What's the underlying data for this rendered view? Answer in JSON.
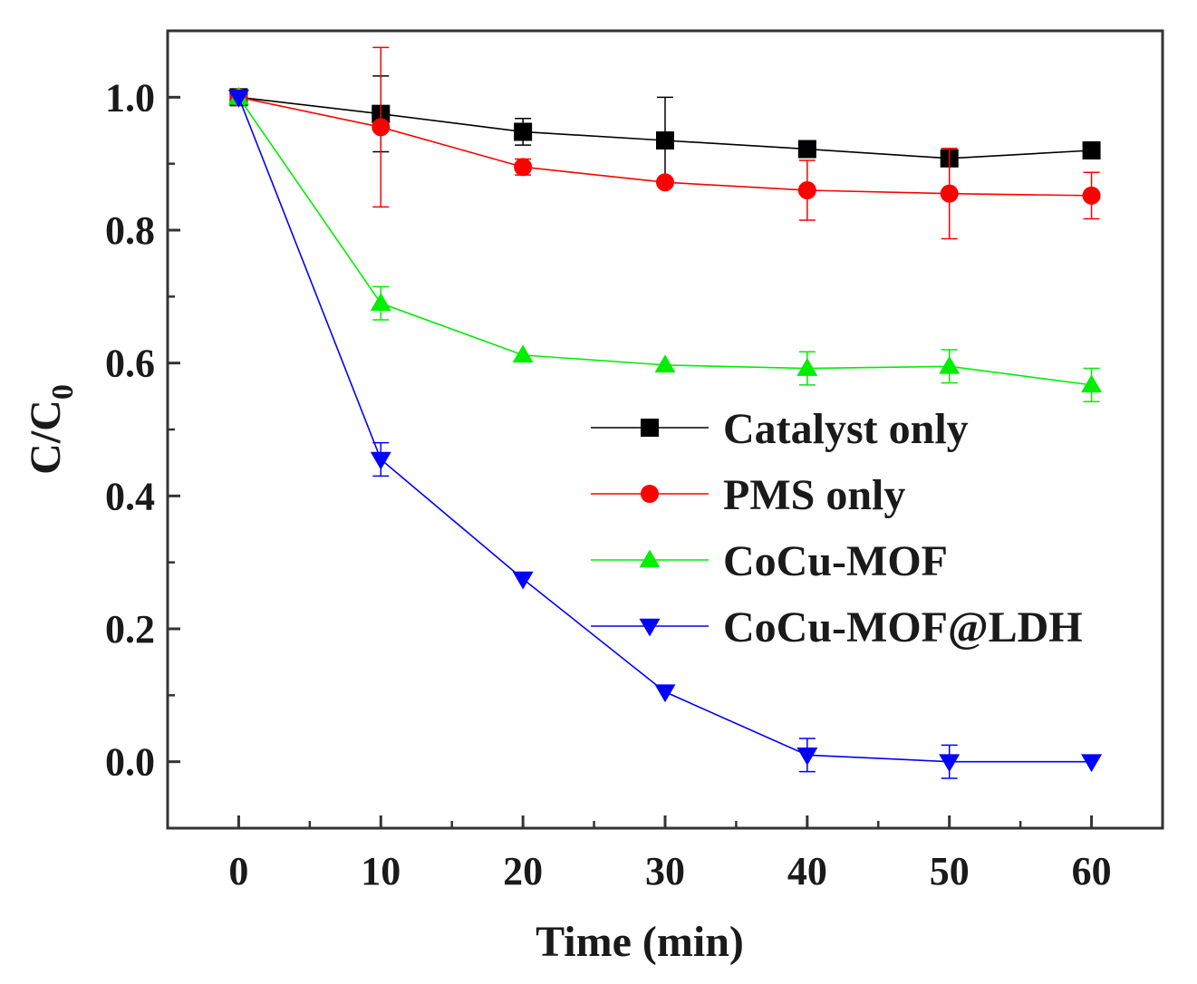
{
  "chart_data": {
    "type": "line",
    "title": "",
    "xlabel": "Time (min)",
    "ylabel": {
      "base": "C/C",
      "subscript": "0"
    },
    "x": [
      0,
      10,
      20,
      30,
      40,
      50,
      60
    ],
    "xlim": [
      -5,
      65
    ],
    "ylim": [
      -0.1,
      1.1
    ],
    "xticks": [
      0,
      10,
      20,
      30,
      40,
      50,
      60
    ],
    "yticks": [
      0.0,
      0.2,
      0.4,
      0.6,
      0.8,
      1.0
    ],
    "xtick_labels": [
      "0",
      "10",
      "20",
      "30",
      "40",
      "50",
      "60"
    ],
    "ytick_labels": [
      "0.0",
      "0.2",
      "0.4",
      "0.6",
      "0.8",
      "1.0"
    ],
    "grid": false,
    "legend_position": "center-right",
    "series": [
      {
        "name": "Catalyst only",
        "color": "#000000",
        "marker": "square",
        "values": [
          1.0,
          0.975,
          0.948,
          0.935,
          0.922,
          0.908,
          0.92
        ],
        "errors": [
          0.0,
          0.057,
          0.02,
          0.065,
          0.0,
          0.0,
          0.0
        ]
      },
      {
        "name": "PMS only",
        "color": "#ff0000",
        "marker": "circle",
        "values": [
          1.0,
          0.955,
          0.895,
          0.872,
          0.86,
          0.855,
          0.852
        ],
        "errors": [
          0.0,
          0.12,
          0.012,
          0.0,
          0.045,
          0.068,
          0.035
        ]
      },
      {
        "name": "CoCu-MOF",
        "color": "#00ee00",
        "marker": "triangle-up",
        "values": [
          1.0,
          0.69,
          0.612,
          0.597,
          0.592,
          0.595,
          0.567
        ],
        "errors": [
          0.0,
          0.025,
          0.0,
          0.0,
          0.025,
          0.025,
          0.025
        ]
      },
      {
        "name": "CoCu-MOF@LDH",
        "color": "#0000ff",
        "marker": "triangle-down",
        "values": [
          1.0,
          0.455,
          0.275,
          0.105,
          0.01,
          0.0,
          0.0
        ],
        "errors": [
          0.0,
          0.025,
          0.0,
          0.0,
          0.025,
          0.025,
          0.0
        ]
      }
    ]
  }
}
